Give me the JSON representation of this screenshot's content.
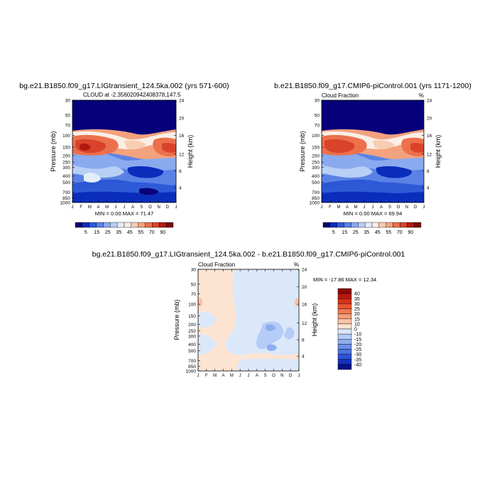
{
  "chart_data": [
    {
      "type": "heatmap",
      "title": "bg.e21.B1850.f09_g17.LIGtransient_124.5ka.002 (yrs 571-600)",
      "left_label": "CLOUD at -2.356020942408378,147.5",
      "right_label": "",
      "stats": "MIN =   0.00 MAX =  71.47",
      "xlabel": "",
      "ylabel": "Pressure (mb)",
      "ylabel_right": "Height (km)",
      "x_ticklabels": [
        "J",
        "F",
        "M",
        "A",
        "M",
        "J",
        "J",
        "A",
        "S",
        "O",
        "N",
        "D",
        "J"
      ],
      "y_ticklabels": [
        "30",
        "50",
        "70",
        "100",
        "150",
        "200",
        "250",
        "300",
        "400",
        "500",
        "700",
        "850",
        "1000"
      ],
      "y_ticklabels_right": [
        "24",
        "20",
        "16",
        "12",
        "8",
        "4"
      ],
      "colorbar": {
        "orientation": "horizontal",
        "labels": [
          "5",
          "15",
          "25",
          "35",
          "45",
          "55",
          "70",
          "90"
        ],
        "colors": [
          "#08006e",
          "#0a2dbb",
          "#2e5ad8",
          "#5880e8",
          "#88a8f0",
          "#b8cff6",
          "#e4eefa",
          "#faefe6",
          "#f7cdb3",
          "#f3a27e",
          "#ec704c",
          "#d9432a",
          "#b21a10",
          "#7a0a06"
        ]
      }
    },
    {
      "type": "heatmap",
      "title": "b.e21.B1850.f09_g17.CMIP6-piControl.001 (yrs 1171-1200)",
      "left_label": "Cloud Fraction",
      "right_label": "%",
      "stats": "MIN =   0.00 MAX =  69.94",
      "xlabel": "",
      "ylabel": "Pressure (mb)",
      "ylabel_right": "Height (km)",
      "x_ticklabels": [
        "J",
        "F",
        "M",
        "A",
        "M",
        "J",
        "J",
        "A",
        "S",
        "O",
        "N",
        "D",
        "J"
      ],
      "y_ticklabels": [
        "30",
        "50",
        "70",
        "100",
        "150",
        "200",
        "250",
        "300",
        "400",
        "500",
        "700",
        "850",
        "1000"
      ],
      "y_ticklabels_right": [
        "24",
        "20",
        "16",
        "12",
        "8",
        "4"
      ],
      "colorbar": {
        "orientation": "horizontal",
        "labels": [
          "5",
          "15",
          "25",
          "35",
          "45",
          "55",
          "70",
          "90"
        ],
        "colors": [
          "#08006e",
          "#0a2dbb",
          "#2e5ad8",
          "#5880e8",
          "#88a8f0",
          "#b8cff6",
          "#e4eefa",
          "#faefe6",
          "#f7cdb3",
          "#f3a27e",
          "#ec704c",
          "#d9432a",
          "#b21a10",
          "#7a0a06"
        ]
      }
    },
    {
      "type": "heatmap",
      "title": "bg.e21.B1850.f09_g17.LIGtransient_124.5ka.002 - b.e21.B1850.f09_g17.CMIP6-piControl.001",
      "left_label": "Cloud Fraction",
      "right_label": "%",
      "stats": "MIN = -17.86 MAX =  12.34",
      "xlabel": "",
      "ylabel": "Pressure (mb)",
      "ylabel_right": "Height (km)",
      "x_ticklabels": [
        "J",
        "F",
        "M",
        "A",
        "M",
        "J",
        "J",
        "A",
        "S",
        "O",
        "N",
        "D",
        "J"
      ],
      "y_ticklabels": [
        "30",
        "50",
        "70",
        "100",
        "150",
        "200",
        "250",
        "300",
        "400",
        "500",
        "700",
        "850",
        "1000"
      ],
      "y_ticklabels_right": [
        "24",
        "20",
        "16",
        "12",
        "8",
        "4"
      ],
      "colorbar": {
        "orientation": "vertical",
        "labels": [
          "40",
          "35",
          "30",
          "25",
          "20",
          "15",
          "10",
          "0",
          "-10",
          "-15",
          "-20",
          "-25",
          "-30",
          "-35",
          "-40"
        ],
        "colors": [
          "#8b0a06",
          "#b81810",
          "#d83218",
          "#ea5530",
          "#f07a52",
          "#f59e7a",
          "#f9c3a6",
          "#fde4d2",
          "#dbe8fa",
          "#b4ccf6",
          "#8eaef0",
          "#6a8fea",
          "#4a72e2",
          "#2c52d6",
          "#1430bd",
          "#08108a"
        ]
      }
    }
  ]
}
